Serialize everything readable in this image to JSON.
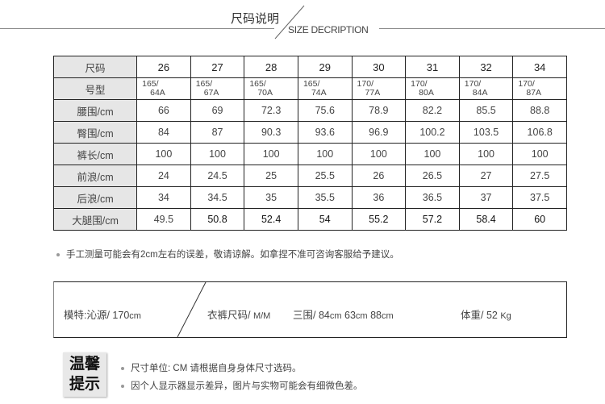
{
  "header": {
    "title_cn": "尺码说明",
    "title_en": "SIZE DECRIPTION"
  },
  "table": {
    "rows": [
      {
        "label": "尺码",
        "values": [
          "26",
          "27",
          "28",
          "29",
          "30",
          "31",
          "32",
          "34"
        ]
      },
      {
        "label": "号型",
        "values": [
          [
            "165/",
            "64A"
          ],
          [
            "165/",
            "67A"
          ],
          [
            "165/",
            "70A"
          ],
          [
            "165/",
            "74A"
          ],
          [
            "170/",
            "77A"
          ],
          [
            "170/",
            "80A"
          ],
          [
            "170/",
            "84A"
          ],
          [
            "170/",
            "87A"
          ]
        ]
      },
      {
        "label": "腰围/cm",
        "values": [
          "66",
          "69",
          "72.3",
          "75.6",
          "78.9",
          "82.2",
          "85.5",
          "88.8"
        ]
      },
      {
        "label": "臀围/cm",
        "values": [
          "84",
          "87",
          "90.3",
          "93.6",
          "96.9",
          "100.2",
          "103.5",
          "106.8"
        ]
      },
      {
        "label": "裤长/cm",
        "values": [
          "100",
          "100",
          "100",
          "100",
          "100",
          "100",
          "100",
          "100"
        ]
      },
      {
        "label": "前浪/cm",
        "values": [
          "24",
          "24.5",
          "25",
          "25.5",
          "26",
          "26.5",
          "27",
          "27.5"
        ]
      },
      {
        "label": "后浪/cm",
        "values": [
          "34",
          "34.5",
          "35",
          "35.5",
          "36",
          "36.5",
          "37",
          "37.5"
        ]
      },
      {
        "label": "大腿围/cm",
        "values": [
          "49.5",
          "50.8",
          "52.4",
          "54",
          "55.2",
          "57.2",
          "58.4",
          "60"
        ]
      }
    ]
  },
  "note": "手工测量可能会有2cm左右的误差，敬请谅解。如拿捏不准可咨询客服给予建议。",
  "model": {
    "name": "模特:沁源/ 170",
    "name_unit": "cm",
    "size": "衣裤尺码/ ",
    "size_value": "M/M",
    "measures": "三围/ 84",
    "m_unit1": "cm",
    "m2": " 63",
    "m_unit2": "cm",
    "m3": " 88",
    "m_unit3": "cm",
    "weight": "体重/ 52 ",
    "weight_unit": "Kg"
  },
  "tips": {
    "badge_line1": "温馨",
    "badge_line2": "提示",
    "items": [
      "尺寸单位: CM   请根据自身身体尺寸选码。",
      "因个人显示器显示差异，图片与实物可能会有细微色差。"
    ]
  }
}
